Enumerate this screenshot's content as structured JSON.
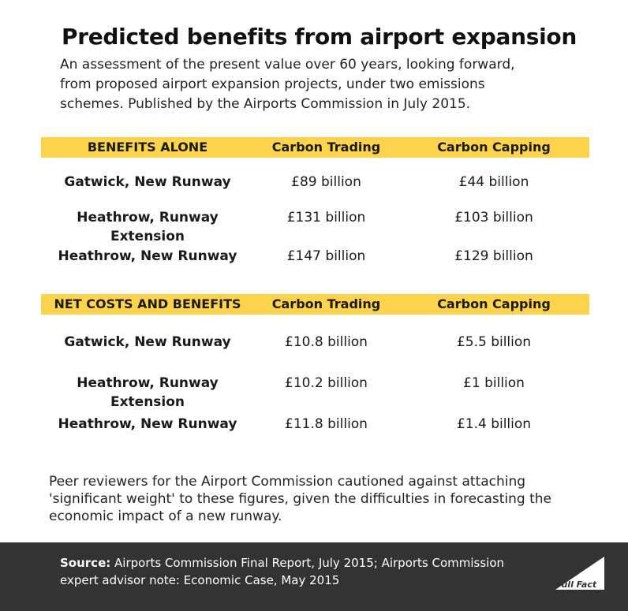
{
  "title": "Predicted benefits from airport expansion",
  "subtitle": "An assessment of the present value over 60 years, looking forward, from proposed airport expansion projects, under two emissions schemes. Published by the Airports Commission in July 2015.",
  "chart_data": [
    {
      "type": "table",
      "columns": [
        "BENEFITS ALONE",
        "Carbon Trading",
        "Carbon Capping"
      ],
      "rows": [
        [
          "Gatwick, New Runway",
          "£89 billion",
          "£44 billion"
        ],
        [
          "Heathrow, Runway Extension",
          "£131 billion",
          "£103 billion"
        ],
        [
          "Heathrow, New Runway",
          "£147 billion",
          "£129 billion"
        ]
      ]
    },
    {
      "type": "table",
      "columns": [
        "NET COSTS AND BENEFITS",
        "Carbon Trading",
        "Carbon Capping"
      ],
      "rows": [
        [
          "Gatwick, New Runway",
          "£10.8 billion",
          "£5.5 billion"
        ],
        [
          "Heathrow, Runway Extension",
          "£10.2 billion",
          "£1 billion"
        ],
        [
          "Heathrow, New Runway",
          "£11.8 billion",
          "£1.4 billion"
        ]
      ]
    }
  ],
  "note": "Peer reviewers for the Airport Commission cautioned against attaching 'significant weight' to these figures, given the difficulties in forecasting the economic impact of a new runway.",
  "footer": {
    "source_label": "Source:",
    "source_text": " Airports Commission Final Report, July 2015; Airports Commission expert advisor note: Economic Case, May 2015",
    "logo_text": "Full Fact"
  },
  "colors": {
    "header_bar": "#fcd34a",
    "footer_bg": "#333333"
  }
}
